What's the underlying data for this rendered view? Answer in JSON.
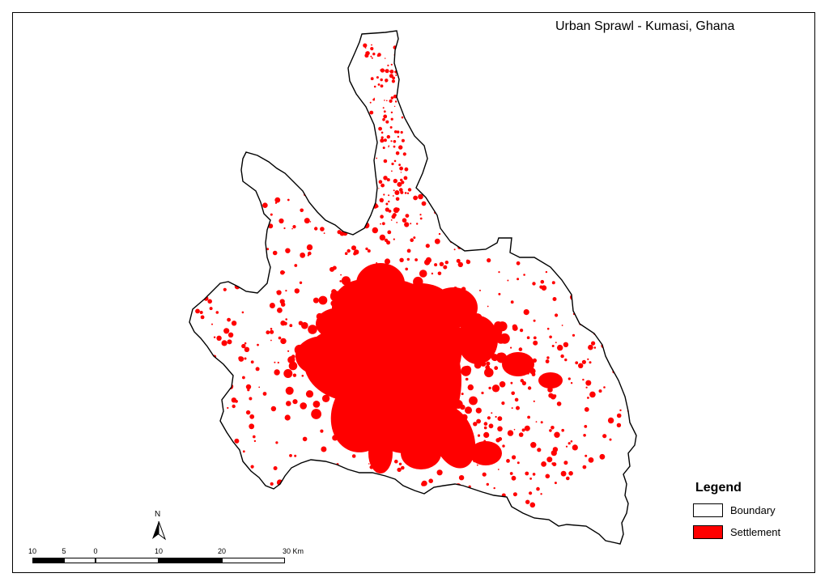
{
  "map": {
    "title": "Urban Sprawl - Kumasi, Ghana",
    "boundary_color": "#000000",
    "settlement_color": "#ff0000",
    "background_color": "#ffffff"
  },
  "legend": {
    "title": "Legend",
    "items": [
      {
        "label": "Boundary",
        "fill": "#ffffff"
      },
      {
        "label": "Settlement",
        "fill": "#ff0000"
      }
    ]
  },
  "north_arrow": {
    "label": "N"
  },
  "scalebar": {
    "labels": [
      "10",
      "5",
      "0",
      "10",
      "20",
      "30 Km"
    ],
    "segment_colors": [
      "#000000",
      "#ffffff",
      "#ffffff",
      "#000000",
      "#ffffff"
    ]
  }
}
